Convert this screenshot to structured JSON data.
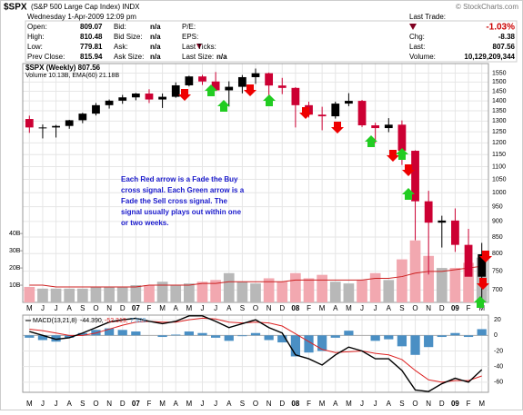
{
  "quote": {
    "symbol": "$SPX",
    "name": "(S&P 500 Large Cap Index) INDX",
    "credit": "© StockCharts.com",
    "datetime": "Wednesday  1-Apr-2009  12:09 pm",
    "rows": [
      [
        "Open:",
        "809.07",
        "Bid:",
        "n/a",
        "P/E:",
        ""
      ],
      [
        "High:",
        "810.48",
        "Bid Size:",
        "n/a",
        "EPS:",
        ""
      ],
      [
        "Low:",
        "779.81",
        "Ask:",
        "n/a",
        "Last Ticks:",
        ""
      ],
      [
        "Prev Close:",
        "815.94",
        "Ask Size:",
        "n/a",
        "Last Size:",
        "n/a"
      ]
    ],
    "last_trade_label": "Last Trade:",
    "change_pct": "-1.03%",
    "chg_label": "Chg:",
    "chg": "-8.38",
    "last_label": "Last:",
    "last": "807.56",
    "volume_label": "Volume:",
    "volume": "10,129,209,344"
  },
  "chart_data": {
    "type": "candlestick",
    "series_label": "$SPX (Weekly) 807.56",
    "volume_label": "Volume 10.13B, EMA(60) 21.18B",
    "categories": [
      "M",
      "J",
      "J",
      "A",
      "S",
      "O",
      "N",
      "D",
      "07",
      "F",
      "M",
      "A",
      "M",
      "J",
      "J",
      "A",
      "S",
      "O",
      "N",
      "D",
      "08",
      "F",
      "M",
      "A",
      "M",
      "J",
      "J",
      "A",
      "S",
      "O",
      "N",
      "D",
      "09",
      "F",
      "M"
    ],
    "open": [
      1310,
      1270,
      1270,
      1277,
      1304,
      1336,
      1378,
      1401,
      1418,
      1438,
      1407,
      1421,
      1482,
      1531,
      1503,
      1455,
      1474,
      1527,
      1549,
      1481,
      1468,
      1378,
      1331,
      1323,
      1386,
      1400,
      1280,
      1267,
      1283,
      1166,
      969,
      896,
      903,
      826,
      735
    ],
    "high": [
      1326,
      1284,
      1282,
      1306,
      1340,
      1389,
      1407,
      1431,
      1441,
      1461,
      1438,
      1498,
      1535,
      1540,
      1556,
      1504,
      1539,
      1576,
      1553,
      1523,
      1472,
      1396,
      1370,
      1396,
      1440,
      1405,
      1292,
      1314,
      1303,
      1168,
      1007,
      919,
      944,
      876,
      832
    ],
    "low": [
      1245,
      1220,
      1224,
      1264,
      1290,
      1327,
      1361,
      1385,
      1403,
      1389,
      1364,
      1416,
      1476,
      1484,
      1451,
      1371,
      1439,
      1490,
      1407,
      1435,
      1270,
      1317,
      1257,
      1312,
      1373,
      1272,
      1200,
      1248,
      1107,
      840,
      741,
      818,
      805,
      736,
      667
    ],
    "close": [
      1270,
      1270,
      1277,
      1304,
      1336,
      1378,
      1401,
      1418,
      1438,
      1407,
      1421,
      1482,
      1531,
      1503,
      1455,
      1474,
      1527,
      1549,
      1481,
      1468,
      1378,
      1331,
      1323,
      1386,
      1400,
      1280,
      1267,
      1283,
      1166,
      969,
      896,
      903,
      826,
      735,
      798
    ],
    "up_color": "#000000",
    "down_color": "#cc0033",
    "log_scale": true,
    "grid": true,
    "ylim": [
      669,
      1605
    ],
    "yticks": [
      700,
      750,
      800,
      850,
      900,
      950,
      1000,
      1050,
      1100,
      1150,
      1200,
      1250,
      1300,
      1350,
      1400,
      1450,
      1500,
      1550
    ],
    "volume": {
      "values": [
        9,
        8,
        8,
        8,
        8,
        9,
        9,
        9,
        10,
        10,
        12,
        10,
        11,
        12,
        13,
        17,
        12,
        11,
        14,
        12,
        17,
        14,
        16,
        12,
        11,
        13,
        17,
        13,
        25,
        36,
        27,
        20,
        20,
        23,
        26
      ],
      "ema": [
        10,
        10,
        9,
        9,
        9,
        9,
        9,
        9,
        9,
        10,
        10,
        10,
        10,
        11,
        11,
        12,
        12,
        12,
        12,
        12,
        13,
        13,
        13,
        13,
        13,
        13,
        14,
        14,
        15,
        17,
        18,
        18,
        19,
        20,
        21
      ],
      "up_color": "#b8b8b8",
      "down_color": "#f2a8b0",
      "ema_color": "#cc2020",
      "ylim": [
        0,
        48
      ],
      "yticks": [
        {
          "value": 10,
          "label": "10B"
        },
        {
          "value": 20,
          "label": "20B"
        },
        {
          "value": 30,
          "label": "30B"
        },
        {
          "value": 40,
          "label": "40B"
        }
      ]
    },
    "macd": {
      "label": "MACD(13,21,8)",
      "macd_value": "-44.390,",
      "signal_value": "-52.319,",
      "hist_value": "7.929",
      "macd": [
        5,
        0,
        -5,
        -3,
        3,
        10,
        17,
        20,
        22,
        18,
        15,
        18,
        25,
        25,
        18,
        10,
        15,
        20,
        10,
        3,
        -25,
        -30,
        -38,
        -25,
        -15,
        -20,
        -30,
        -30,
        -45,
        -70,
        -72,
        -62,
        -55,
        -60,
        -44
      ],
      "signal": [
        8,
        6,
        3,
        0,
        0,
        3,
        8,
        13,
        17,
        18,
        17,
        17,
        20,
        22,
        21,
        17,
        16,
        17,
        16,
        12,
        2,
        -8,
        -18,
        -22,
        -21,
        -20,
        -23,
        -25,
        -31,
        -45,
        -57,
        -60,
        -58,
        -58,
        -52
      ],
      "histogram": [
        -3,
        -6,
        -8,
        -3,
        3,
        7,
        9,
        7,
        5,
        0,
        -2,
        1,
        5,
        3,
        -3,
        -7,
        -1,
        3,
        -6,
        -9,
        -27,
        -22,
        -20,
        -3,
        6,
        0,
        -7,
        -5,
        -14,
        -25,
        -15,
        -2,
        3,
        -2,
        8
      ],
      "macd_color": "#000000",
      "signal_color": "#dd2222",
      "hist_color": "#4a8fc4",
      "ylim": [
        -73,
        26
      ],
      "yticks": [
        20,
        0,
        -20,
        -40,
        -60
      ]
    },
    "annotation": [
      "Each Red arrow is a Fade the Buy",
      "cross signal. Each Green arrow is a",
      "Fade the Sell cross signal. The",
      "signal usually plays out within one",
      "or two weeks."
    ]
  }
}
